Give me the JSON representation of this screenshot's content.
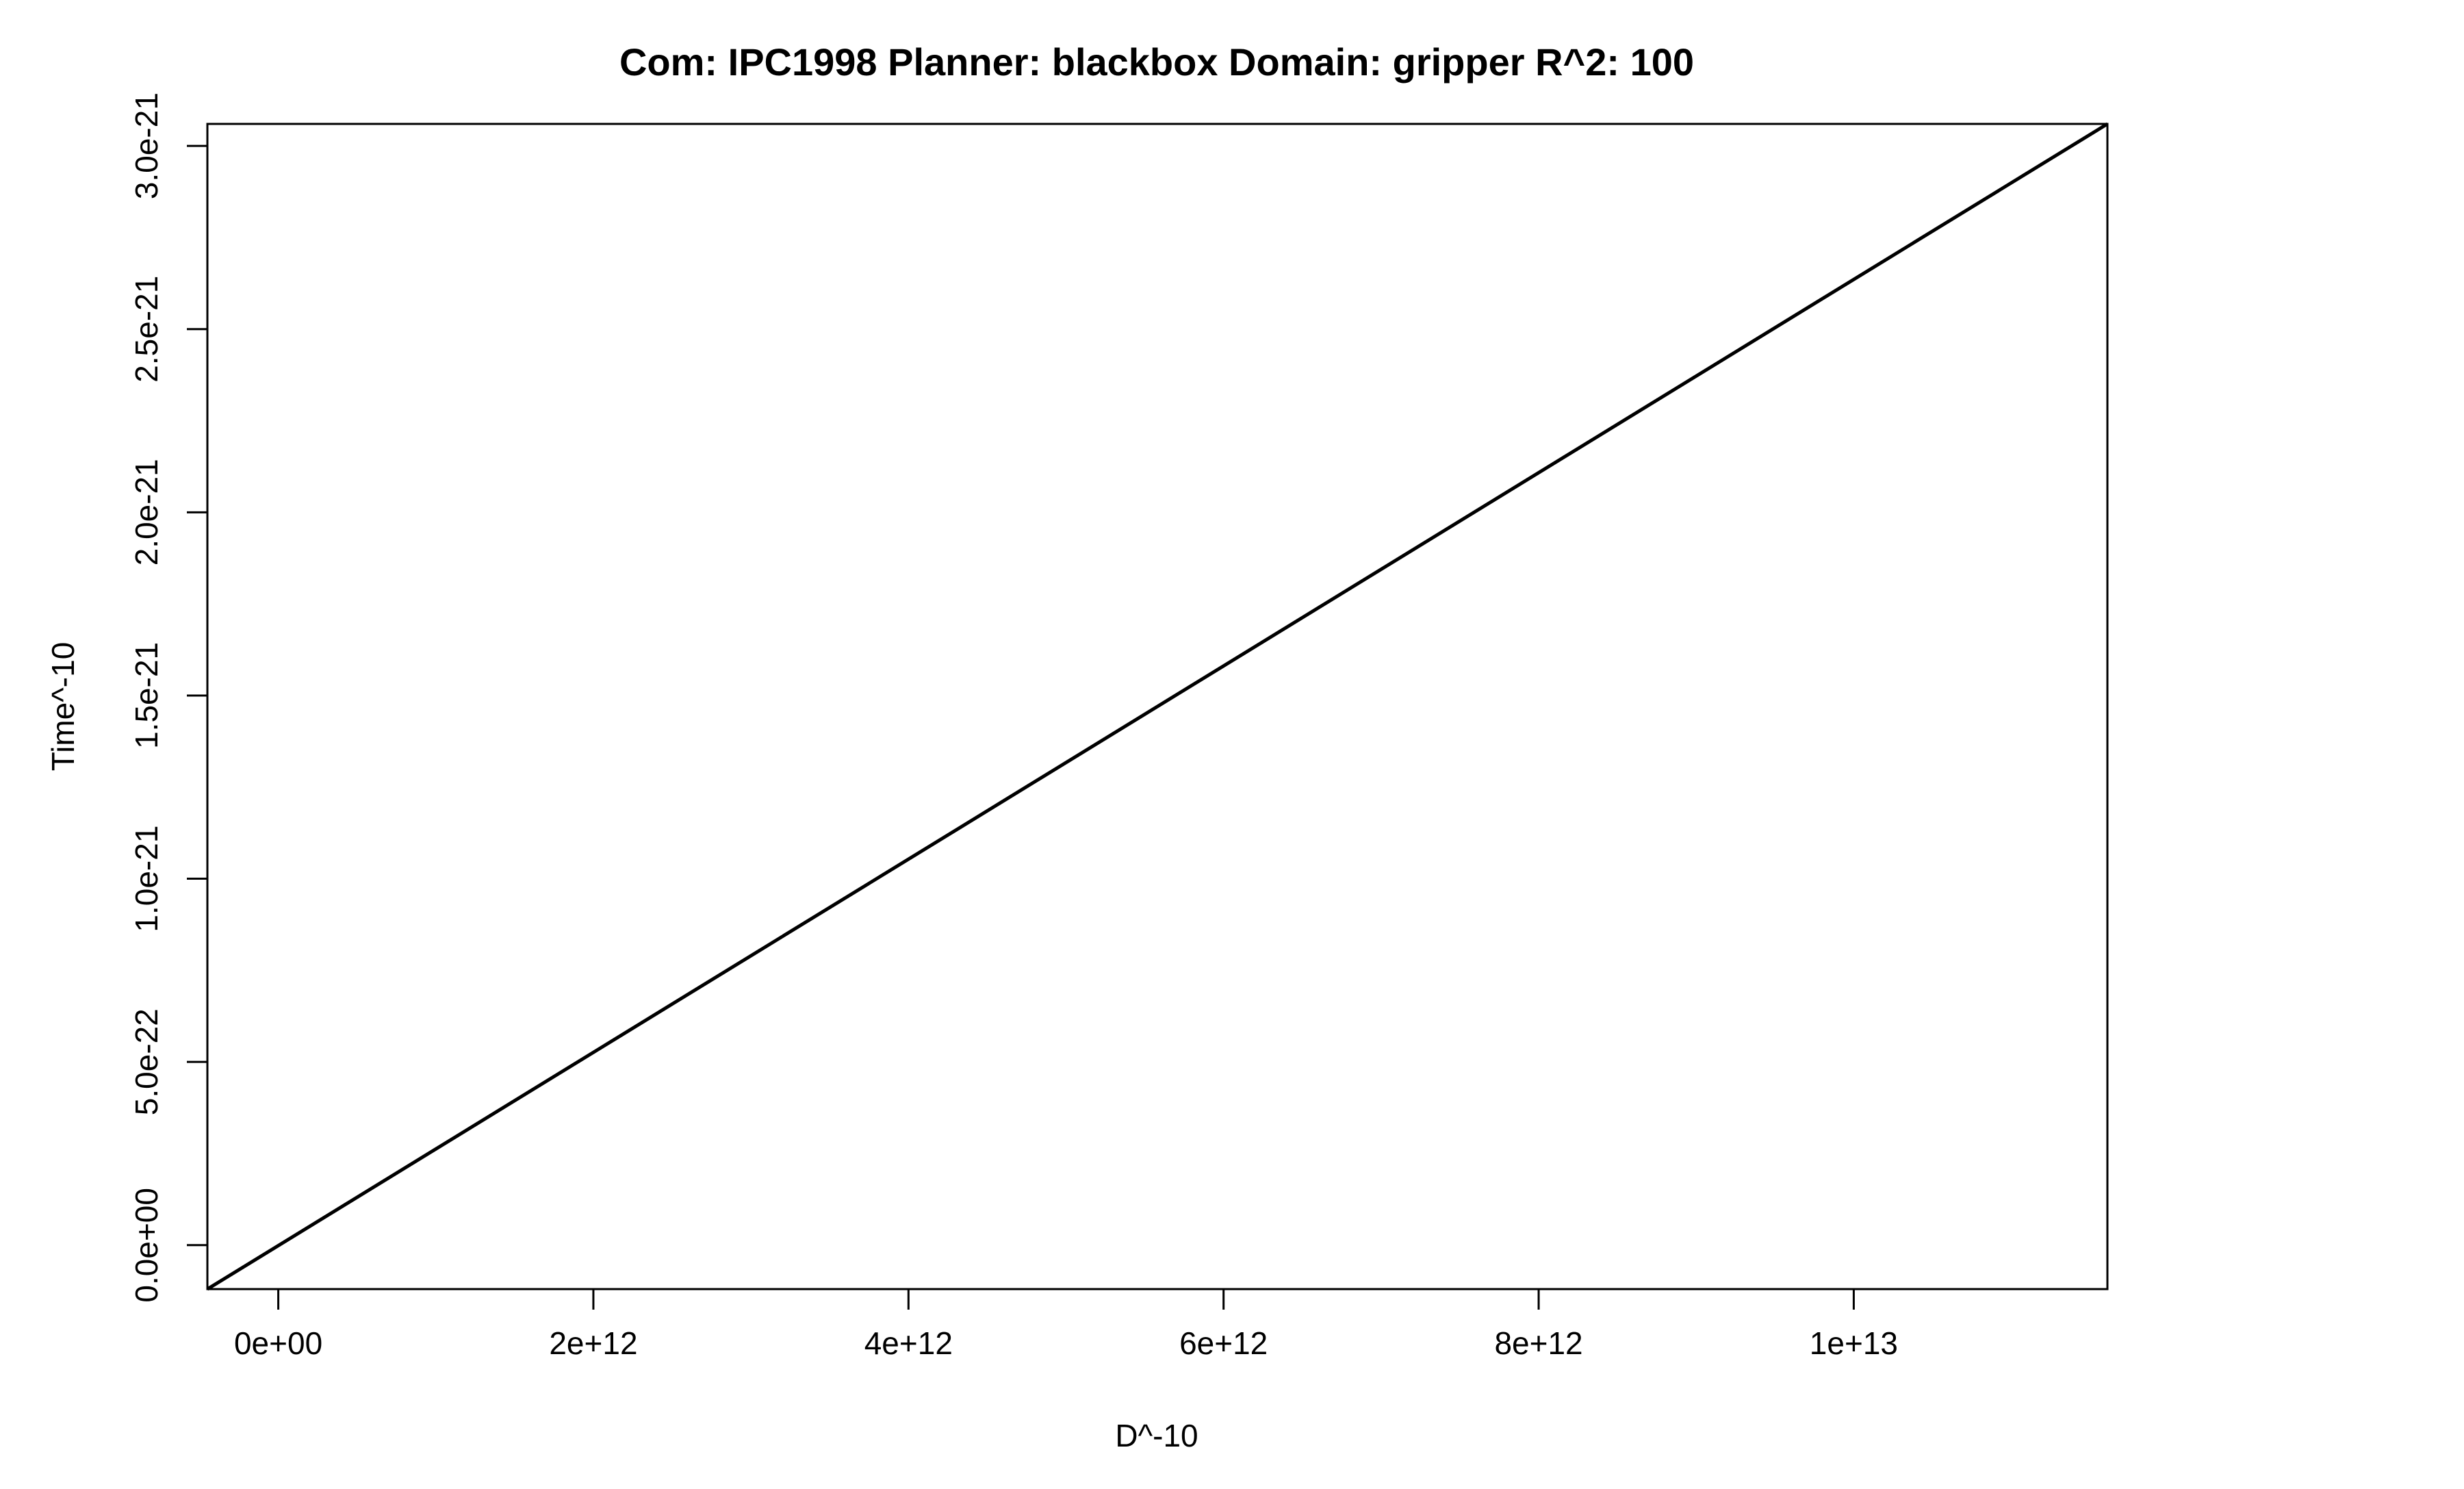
{
  "chart_data": {
    "type": "line",
    "title": "Com: IPC1998 Planner: blackbox Domain: gripper R^2: 100",
    "xlabel": "D^-10",
    "ylabel": "Time^-10",
    "xlim": [
      -450000000000.0,
      11610000000000.0
    ],
    "ylim": [
      -1.2e-22,
      3.06e-21
    ],
    "x_ticks": [
      {
        "value": 0,
        "label": "0e+00"
      },
      {
        "value": 2000000000000.0,
        "label": "2e+12"
      },
      {
        "value": 4000000000000.0,
        "label": "4e+12"
      },
      {
        "value": 6000000000000.0,
        "label": "6e+12"
      },
      {
        "value": 8000000000000.0,
        "label": "8e+12"
      },
      {
        "value": 10000000000000.0,
        "label": "1e+13"
      }
    ],
    "y_ticks": [
      {
        "value": 0,
        "label": "0.0e+00"
      },
      {
        "value": 5e-22,
        "label": "5.0e-22"
      },
      {
        "value": 1e-21,
        "label": "1.0e-21"
      },
      {
        "value": 1.5e-21,
        "label": "1.5e-21"
      },
      {
        "value": 2e-21,
        "label": "2.0e-21"
      },
      {
        "value": 2.5e-21,
        "label": "2.5e-21"
      },
      {
        "value": 3e-21,
        "label": "3.0e-21"
      }
    ],
    "series": [
      {
        "x": [
          -450000000000.0,
          11610000000000.0
        ],
        "y": [
          -1.2e-22,
          3.06e-21
        ],
        "color": "#000000"
      }
    ],
    "grid": false,
    "legend": false
  }
}
